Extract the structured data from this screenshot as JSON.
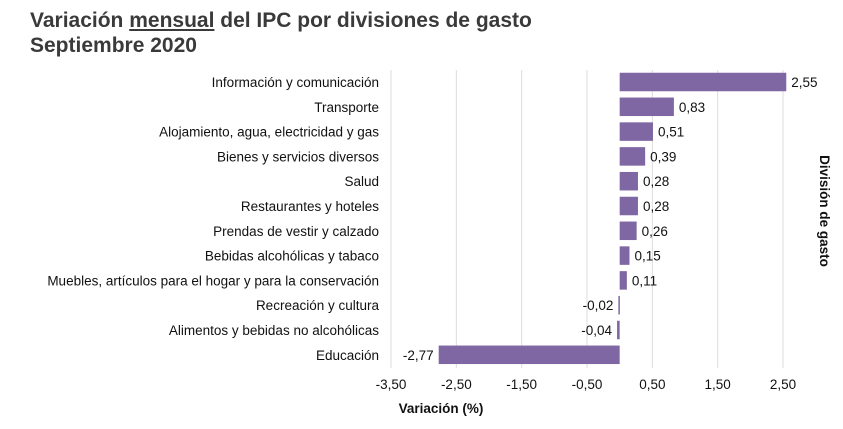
{
  "title": {
    "part1": "Variación ",
    "part2": "mensual",
    "part3": " del IPC por divisiones de gasto",
    "line2": "Septiembre 2020"
  },
  "chart_data": {
    "type": "bar",
    "orientation": "horizontal",
    "categories": [
      "Información y comunicación",
      "Transporte",
      "Alojamiento, agua, electricidad y gas",
      "Bienes y servicios diversos",
      "Salud",
      "Restaurantes y hoteles",
      "Prendas de vestir y calzado",
      "Bebidas alcohólicas y tabaco",
      "Muebles, artículos para el hogar y para la conservación",
      "Recreación y cultura",
      "Alimentos y bebidas no alcohólicas",
      "Educación"
    ],
    "values": [
      2.55,
      0.83,
      0.51,
      0.39,
      0.28,
      0.28,
      0.26,
      0.15,
      0.11,
      -0.02,
      -0.04,
      -2.77
    ],
    "data_labels": [
      "2,55",
      "0,83",
      "0,51",
      "0,39",
      "0,28",
      "0,28",
      "0,26",
      "0,15",
      "0,11",
      "-0,02",
      "-0,04",
      "-2,77"
    ],
    "xlabel": "Variación (%)",
    "ylabel": "División de gasto",
    "xlim": [
      -3.5,
      2.5
    ],
    "xticks": [
      -3.5,
      -2.5,
      -1.5,
      -0.5,
      0.5,
      1.5,
      2.5
    ],
    "xtick_labels": [
      "-3,50",
      "-2,50",
      "-1,50",
      "-0,50",
      "0,50",
      "1,50",
      "2,50"
    ],
    "grid": "vertical",
    "bar_color": "#7f67a3",
    "legend": "none"
  }
}
